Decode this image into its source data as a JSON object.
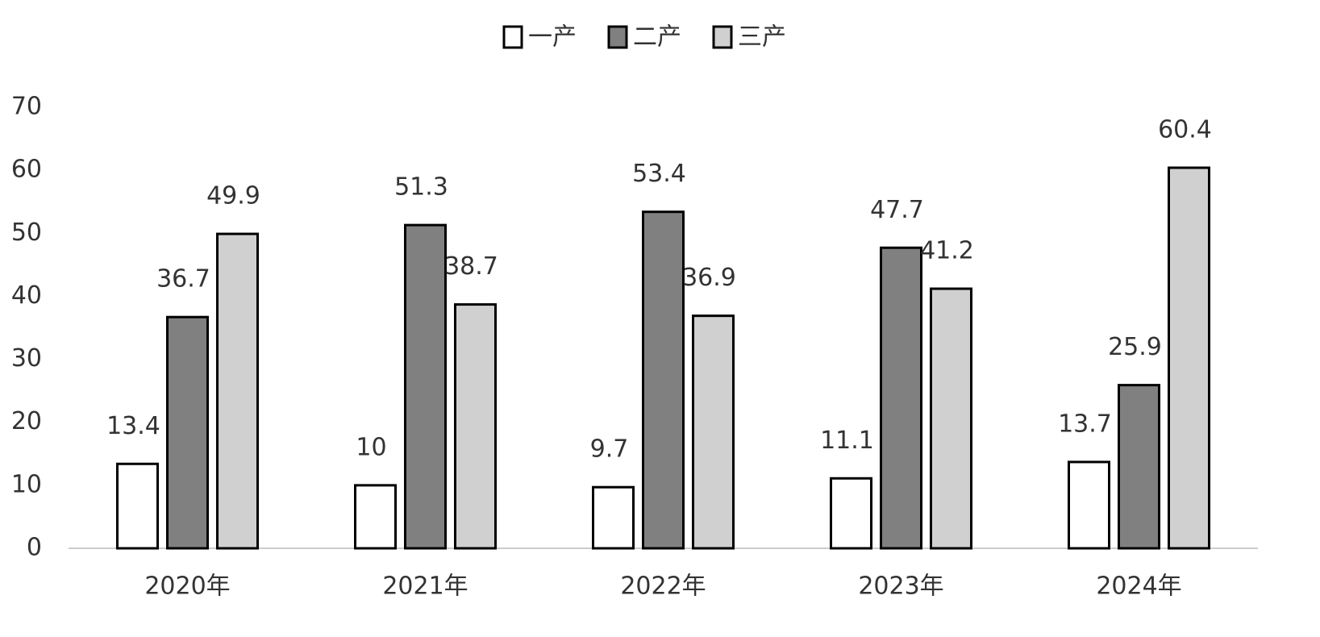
{
  "chart_data": {
    "type": "bar",
    "categories": [
      "2020年",
      "2021年",
      "2022年",
      "2023年",
      "2024年"
    ],
    "series": [
      {
        "name": "一产",
        "color": "#ffffff",
        "values": [
          13.4,
          10,
          9.7,
          11.1,
          13.7
        ]
      },
      {
        "name": "二产",
        "color": "#808080",
        "values": [
          36.7,
          51.3,
          53.4,
          47.7,
          25.9
        ]
      },
      {
        "name": "三产",
        "color": "#d0d0d0",
        "values": [
          49.9,
          38.7,
          36.9,
          41.2,
          60.4
        ]
      }
    ],
    "ylim": [
      0,
      70
    ],
    "yticks": [
      0,
      10,
      20,
      30,
      40,
      50,
      60,
      70
    ],
    "grid": false,
    "legend": "top"
  }
}
